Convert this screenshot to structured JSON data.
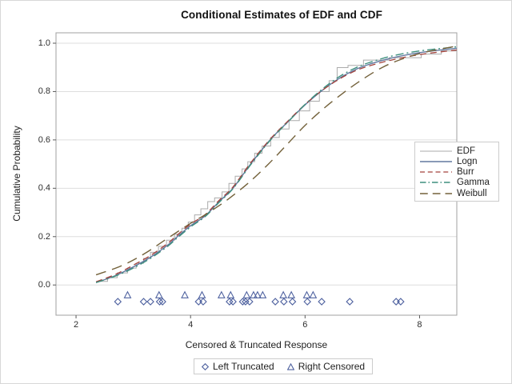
{
  "title": "Conditional Estimates of EDF and CDF",
  "marker_legend": {
    "left_label": "Left Truncated",
    "right_label": "Right Censored"
  },
  "colors": {
    "frame": "#a0a0a0",
    "grid": "#dedede",
    "tick": "#5a5a5a",
    "marker_blue": "#5063a0",
    "legend_border": "#cccccc"
  },
  "chart_data": {
    "type": "line",
    "title": "Conditional Estimates of EDF and CDF",
    "xlabel": "Censored & Truncated Response",
    "ylabel": "Cumulative Probability",
    "xlim": [
      1.65,
      8.65
    ],
    "ylim": [
      -0.125,
      1.043
    ],
    "xticks": [
      "2",
      "4",
      "6",
      "8"
    ],
    "yticks": [
      "0.0",
      "0.2",
      "0.4",
      "0.6",
      "0.8",
      "1.0"
    ],
    "grid": "horizontal-only",
    "legend_position": "inside-right",
    "series": [
      {
        "name": "EDF",
        "type": "step",
        "color": "#ababab",
        "dash": "",
        "width": 1,
        "points": [
          [
            2.38,
            0.015
          ],
          [
            2.55,
            0.03
          ],
          [
            2.72,
            0.05
          ],
          [
            2.9,
            0.07
          ],
          [
            3.05,
            0.09
          ],
          [
            3.18,
            0.11
          ],
          [
            3.3,
            0.135
          ],
          [
            3.44,
            0.16
          ],
          [
            3.58,
            0.185
          ],
          [
            3.72,
            0.21
          ],
          [
            3.85,
            0.235
          ],
          [
            3.96,
            0.26
          ],
          [
            4.07,
            0.29
          ],
          [
            4.18,
            0.315
          ],
          [
            4.3,
            0.345
          ],
          [
            4.42,
            0.36
          ],
          [
            4.55,
            0.385
          ],
          [
            4.67,
            0.42
          ],
          [
            4.78,
            0.45
          ],
          [
            4.9,
            0.48
          ],
          [
            5.0,
            0.51
          ],
          [
            5.12,
            0.545
          ],
          [
            5.25,
            0.575
          ],
          [
            5.4,
            0.61
          ],
          [
            5.55,
            0.645
          ],
          [
            5.72,
            0.68
          ],
          [
            5.9,
            0.72
          ],
          [
            6.08,
            0.76
          ],
          [
            6.25,
            0.8
          ],
          [
            6.42,
            0.845
          ],
          [
            6.56,
            0.899
          ],
          [
            6.75,
            0.908
          ],
          [
            7.02,
            0.93
          ],
          [
            7.47,
            0.94
          ],
          [
            8.03,
            0.955
          ],
          [
            8.38,
            0.968
          ],
          [
            8.65,
            0.968
          ]
        ]
      },
      {
        "name": "Logn",
        "type": "smooth",
        "color": "#62789f",
        "dash": "",
        "width": 1.4,
        "points": [
          [
            2.35,
            0.01
          ],
          [
            2.7,
            0.04
          ],
          [
            3.0,
            0.075
          ],
          [
            3.3,
            0.115
          ],
          [
            3.6,
            0.165
          ],
          [
            3.77,
            0.2
          ],
          [
            4.0,
            0.245
          ],
          [
            4.25,
            0.285
          ],
          [
            4.5,
            0.345
          ],
          [
            4.74,
            0.4
          ],
          [
            5.05,
            0.5
          ],
          [
            5.39,
            0.6
          ],
          [
            5.7,
            0.675
          ],
          [
            6.0,
            0.745
          ],
          [
            6.3,
            0.805
          ],
          [
            6.6,
            0.855
          ],
          [
            6.9,
            0.893
          ],
          [
            7.15,
            0.915
          ],
          [
            7.5,
            0.938
          ],
          [
            8.0,
            0.961
          ],
          [
            8.65,
            0.979
          ]
        ]
      },
      {
        "name": "Burr",
        "type": "smooth",
        "color": "#a3423c",
        "dash": "8 5",
        "width": 1.3,
        "points": [
          [
            2.35,
            0.013
          ],
          [
            2.7,
            0.045
          ],
          [
            3.0,
            0.082
          ],
          [
            3.3,
            0.122
          ],
          [
            3.6,
            0.172
          ],
          [
            3.77,
            0.207
          ],
          [
            4.0,
            0.252
          ],
          [
            4.25,
            0.29
          ],
          [
            4.5,
            0.35
          ],
          [
            4.74,
            0.405
          ],
          [
            5.05,
            0.505
          ],
          [
            5.39,
            0.603
          ],
          [
            5.7,
            0.678
          ],
          [
            6.0,
            0.747
          ],
          [
            6.3,
            0.805
          ],
          [
            6.6,
            0.852
          ],
          [
            6.9,
            0.888
          ],
          [
            7.15,
            0.908
          ],
          [
            7.5,
            0.93
          ],
          [
            8.0,
            0.953
          ],
          [
            8.65,
            0.972
          ]
        ]
      },
      {
        "name": "Gamma",
        "type": "smooth",
        "color": "#3e8f7e",
        "dash": "10 4 2 4",
        "width": 1.4,
        "points": [
          [
            2.35,
            0.01
          ],
          [
            2.7,
            0.038
          ],
          [
            3.0,
            0.07
          ],
          [
            3.3,
            0.11
          ],
          [
            3.6,
            0.16
          ],
          [
            3.77,
            0.195
          ],
          [
            4.0,
            0.24
          ],
          [
            4.25,
            0.282
          ],
          [
            4.5,
            0.342
          ],
          [
            4.74,
            0.398
          ],
          [
            5.05,
            0.497
          ],
          [
            5.39,
            0.598
          ],
          [
            5.7,
            0.674
          ],
          [
            6.0,
            0.747
          ],
          [
            6.3,
            0.81
          ],
          [
            6.6,
            0.862
          ],
          [
            6.9,
            0.9
          ],
          [
            7.15,
            0.922
          ],
          [
            7.5,
            0.946
          ],
          [
            8.0,
            0.968
          ],
          [
            8.65,
            0.985
          ]
        ]
      },
      {
        "name": "Weibull",
        "type": "smooth",
        "color": "#73613a",
        "dash": "13 8",
        "width": 1.4,
        "points": [
          [
            2.35,
            0.042
          ],
          [
            2.8,
            0.08
          ],
          [
            3.2,
            0.13
          ],
          [
            3.58,
            0.19
          ],
          [
            4.0,
            0.255
          ],
          [
            4.25,
            0.29
          ],
          [
            4.6,
            0.345
          ],
          [
            5.0,
            0.42
          ],
          [
            5.36,
            0.5
          ],
          [
            5.7,
            0.585
          ],
          [
            6.0,
            0.66
          ],
          [
            6.35,
            0.735
          ],
          [
            6.7,
            0.8
          ],
          [
            7.0,
            0.85
          ],
          [
            7.35,
            0.9
          ],
          [
            7.7,
            0.935
          ],
          [
            8.1,
            0.963
          ],
          [
            8.65,
            0.988
          ]
        ]
      }
    ],
    "observations": {
      "left_truncated": {
        "marker": "diamond",
        "color": "#5063a0",
        "y": -0.069,
        "x": [
          2.73,
          3.18,
          3.3,
          3.46,
          3.51,
          4.14,
          4.22,
          4.68,
          4.74,
          4.91,
          4.96,
          5.03,
          5.48,
          5.63,
          5.78,
          6.04,
          6.29,
          6.78,
          7.59,
          7.67
        ]
      },
      "right_censored": {
        "marker": "triangle",
        "color": "#5063a0",
        "y": -0.042,
        "x": [
          2.9,
          3.45,
          3.9,
          4.2,
          4.54,
          4.7,
          4.98,
          5.1,
          5.17,
          5.26,
          5.62,
          5.76,
          6.03,
          6.14
        ]
      }
    }
  }
}
